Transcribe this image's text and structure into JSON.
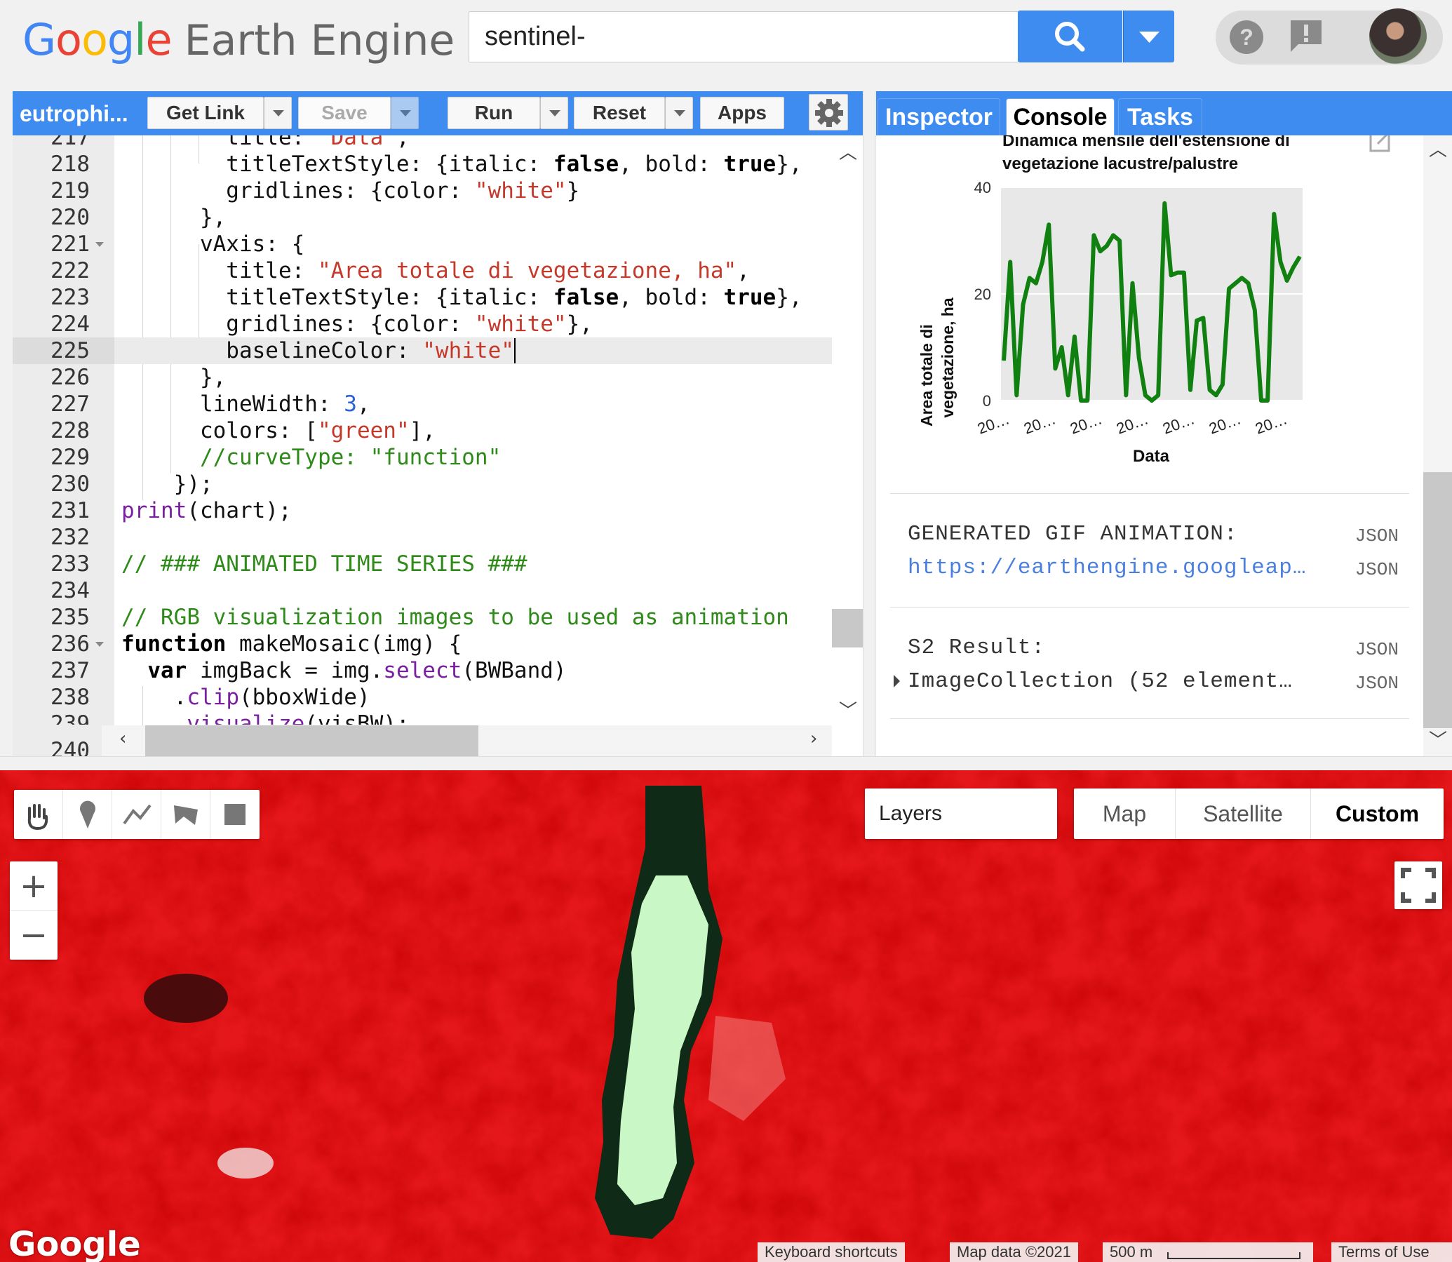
{
  "header": {
    "logo_google": "Google",
    "logo_product": "Earth Engine",
    "search_value": "sentinel-",
    "colors": {
      "accent": "#3f8cf0"
    },
    "icons": [
      "search-icon",
      "chevron-down-icon",
      "help-icon",
      "feedback-icon",
      "avatar"
    ]
  },
  "editor": {
    "script_name": "eutrophi...",
    "buttons": {
      "get_link": "Get Link",
      "save": "Save",
      "run": "Run",
      "reset": "Reset",
      "apps": "Apps"
    },
    "active_line": "225"
  },
  "right_panel": {
    "tabs": [
      "Inspector",
      "Console",
      "Tasks"
    ],
    "active_tab": "Console"
  },
  "console": {
    "entries": [
      {
        "label": "GENERATED GIF ANIMATION:",
        "value": "https://earthengine.googleap…",
        "json1": "JSON",
        "json2": "JSON"
      },
      {
        "label": "S2 Result:",
        "value": "ImageCollection (52 element…",
        "json1": "JSON",
        "json2": "JSON"
      }
    ]
  },
  "chart_data": {
    "type": "line",
    "title": "Dinamica mensile dell'estensione di vegetazione lacustre/palustre",
    "title_lines": [
      "Dinamica mensile dell'estensione di",
      "vegetazione lacustre/palustre"
    ],
    "xlabel": "Data",
    "ylabel": "Area totale di vegetazione, ha",
    "ylabel_lines": [
      "Area totale di",
      "vegetazione, ha"
    ],
    "ylim": [
      0,
      40
    ],
    "yticks": [
      0,
      20,
      40
    ],
    "xtick_labels": [
      "20…",
      "20…",
      "20…",
      "20…",
      "20…",
      "20…",
      "20…"
    ],
    "grid": true,
    "series": [
      {
        "color": "green",
        "values": [
          7.5,
          26,
          1,
          18,
          23,
          22,
          26,
          33,
          6,
          10,
          1,
          12,
          0,
          0,
          31,
          28,
          29,
          31,
          30,
          1,
          22,
          8,
          1,
          0,
          1,
          37,
          23.5,
          24,
          24,
          2,
          15,
          15.5,
          2,
          1,
          3,
          21,
          22,
          23,
          22,
          17,
          0,
          0,
          35,
          26,
          22.5,
          25,
          27
        ]
      }
    ]
  },
  "map": {
    "draw_tools": [
      "hand-icon",
      "point-icon",
      "line-icon",
      "polygon-icon",
      "rectangle-icon"
    ],
    "zoom_in": "+",
    "zoom_out": "−",
    "layers_label": "Layers",
    "map_types": [
      "Map",
      "Satellite",
      "Custom"
    ],
    "active_map_type": "Custom",
    "google_mark": "Google",
    "attributions": {
      "shortcuts": "Keyboard shortcuts",
      "map_data": "Map data ©2021",
      "scale": "500 m",
      "terms": "Terms of Use"
    }
  }
}
